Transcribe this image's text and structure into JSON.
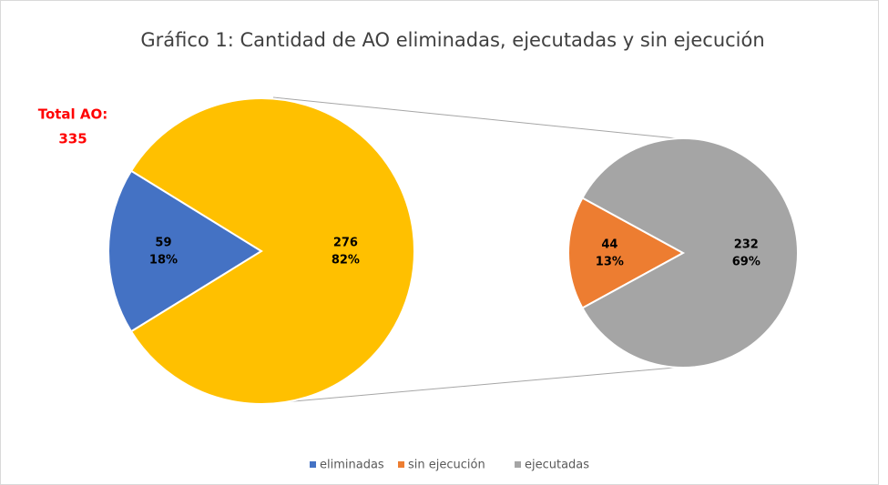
{
  "chart_data": {
    "type": "pie_of_pie",
    "title": "Gráfico 1: Cantidad de AO eliminadas, ejecutadas y sin ejecución",
    "annotation": "Total AO:",
    "total": 335,
    "primary": {
      "categories": [
        "eliminadas",
        null
      ],
      "values": [
        59,
        276
      ],
      "percent_labels": [
        "18%",
        "82%"
      ],
      "colors": [
        "#4472c4",
        "#ffc000"
      ]
    },
    "secondary": {
      "categories": [
        "sin ejecución",
        "ejecutadas"
      ],
      "values": [
        44,
        232
      ],
      "percent_labels": [
        "13%",
        "69%"
      ],
      "colors": [
        "#ed7d31",
        "#a5a5a5"
      ]
    }
  }
}
